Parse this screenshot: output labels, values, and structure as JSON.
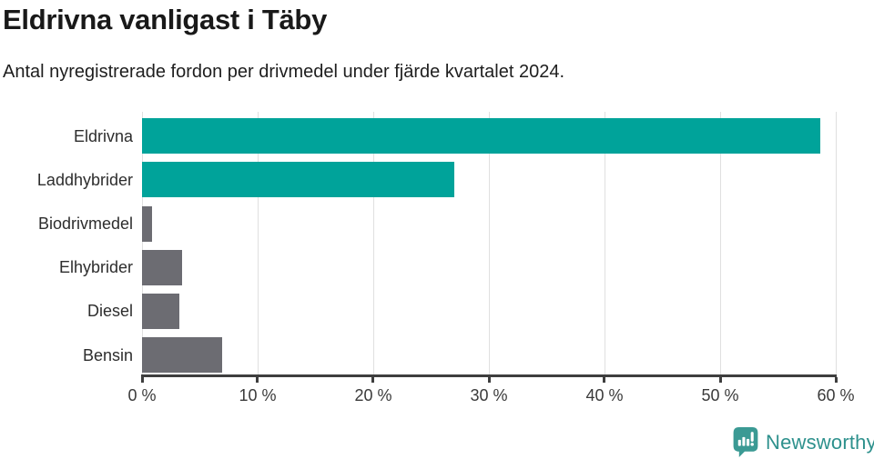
{
  "header": {
    "title": "Eldrivna vanligast i Täby",
    "subtitle": "Antal nyregistrerade fordon per drivmedel under fjärde kvartalet 2024."
  },
  "chart_data": {
    "type": "bar",
    "orientation": "horizontal",
    "title": "Eldrivna vanligast i Täby",
    "subtitle": "Antal nyregistrerade fordon per drivmedel under fjärde kvartalet 2024.",
    "categories": [
      "Eldrivna",
      "Laddhybrider",
      "Biodrivmedel",
      "Elhybrider",
      "Diesel",
      "Bensin"
    ],
    "values": [
      58.7,
      27.0,
      0.9,
      3.5,
      3.2,
      6.9
    ],
    "unit": "%",
    "bar_colors": [
      "#00a39a",
      "#00a39a",
      "#6c6c72",
      "#6c6c72",
      "#6c6c72",
      "#6c6c72"
    ],
    "xlabel": "",
    "ylabel": "",
    "xlim": [
      0,
      60
    ],
    "x_tick_step": 10,
    "x_tick_labels": [
      "0 %",
      "10 %",
      "20 %",
      "30 %",
      "40 %",
      "50 %",
      "60 %"
    ],
    "grid": true,
    "legend": false
  },
  "branding": {
    "brand": "Newsworthy",
    "logo_icon": "newsworthy-chart-speech-bubble-icon",
    "brand_color": "#2e918d",
    "icon_color": "#3b9a94"
  },
  "colors": {
    "highlight_bar": "#00a39a",
    "default_bar": "#6c6c72",
    "axis": "#3e3e3e",
    "gridline": "#e0e0e0",
    "title_text": "#191919",
    "label_text": "#2d2d2d"
  }
}
